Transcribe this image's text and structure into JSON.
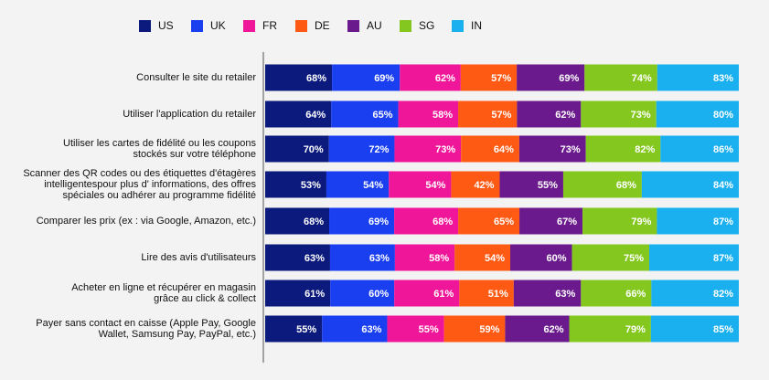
{
  "chart_data": {
    "type": "stacked-bar-100",
    "categories": [
      "Consulter le site du retailer",
      "Utiliser l'application du retailer",
      "Utiliser les cartes de fidélité ou les coupons\nstockés sur votre téléphone",
      "Scanner des QR codes ou des étiquettes d'étagères\nintelligentespour plus d' informations, des offres\nspéciales ou adhérer au programme fidélité",
      "Comparer les prix (ex : via Google, Amazon, etc.)",
      "Lire des avis d'utilisateurs",
      "Acheter en ligne et récupérer en magasin\ngrâce au click & collect",
      "Payer sans contact  en caisse (Apple Pay, Google\nWallet, Samsung Pay, PayPal, etc.)"
    ],
    "series": [
      {
        "name": "US",
        "color": "#0b1a7c",
        "values": [
          68,
          64,
          70,
          53,
          68,
          63,
          61,
          55
        ],
        "value_labels": [
          "68%",
          "64%",
          "70%",
          "53%",
          "68%",
          "63%",
          "61%",
          "55%"
        ]
      },
      {
        "name": "UK",
        "color": "#1a3ff0",
        "values": [
          69,
          65,
          72,
          54,
          69,
          63,
          60,
          63
        ],
        "value_labels": [
          "69%",
          "65%",
          "72%",
          "54%",
          "69%",
          "63%",
          "60%",
          "63%"
        ]
      },
      {
        "name": "FR",
        "color": "#f0169a",
        "values": [
          62,
          58,
          73,
          54,
          68,
          58,
          61,
          55
        ],
        "value_labels": [
          "62%",
          "58%",
          "73%",
          "54%",
          "68%",
          "58%",
          "61%",
          "55%"
        ]
      },
      {
        "name": "DE",
        "color": "#ff5a14",
        "values": [
          57,
          57,
          64,
          42,
          65,
          54,
          51,
          59
        ],
        "value_labels": [
          "57%",
          "57%",
          "64%",
          "42%",
          "65%",
          "54%",
          "51%",
          "59%"
        ]
      },
      {
        "name": "AU",
        "color": "#6a1a8c",
        "values": [
          69,
          62,
          73,
          55,
          67,
          60,
          63,
          62
        ],
        "value_labels": [
          "69%",
          "62%",
          "73%",
          "55%",
          "67%",
          "60%",
          "63%",
          "62%"
        ]
      },
      {
        "name": "SG",
        "color": "#84c81f",
        "values": [
          74,
          73,
          82,
          68,
          79,
          75,
          66,
          79
        ],
        "value_labels": [
          "74%",
          "73%",
          "82%",
          "68%",
          "79%",
          "75%",
          "66%",
          "79%"
        ]
      },
      {
        "name": "IN",
        "color": "#1ab0f0",
        "values": [
          83,
          80,
          86,
          84,
          87,
          87,
          82,
          85
        ],
        "value_labels": [
          "83%",
          "80%",
          "86%",
          "84%",
          "87%",
          "87%",
          "82%",
          "85%"
        ]
      }
    ]
  }
}
